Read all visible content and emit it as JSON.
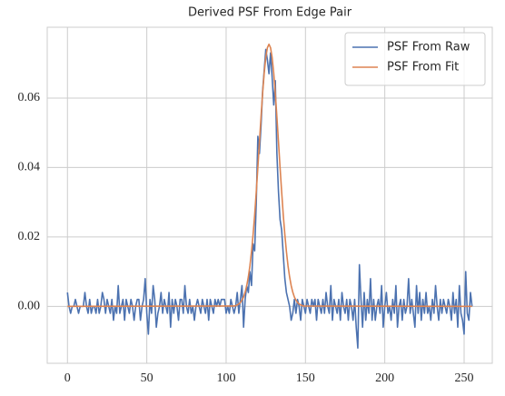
{
  "chart_data": {
    "type": "line",
    "title": "Derived PSF From Edge Pair",
    "xlim": [
      -12.75,
      267.75
    ],
    "xticks": [
      0,
      50,
      100,
      150,
      200,
      250
    ],
    "ylim": [
      -0.0164,
      0.0804
    ],
    "yticks": [
      {
        "value": 0,
        "label": "0.00"
      },
      {
        "value": 0.02,
        "label": "0.02"
      },
      {
        "value": 0.04,
        "label": "0.04"
      },
      {
        "value": 0.06,
        "label": "0.06"
      }
    ],
    "grid": true,
    "legend": "upper right",
    "series": [
      {
        "name": "PSF From Raw",
        "color": "#4c72b0",
        "x": [
          0,
          1,
          2,
          3,
          4,
          5,
          6,
          7,
          8,
          9,
          10,
          11,
          12,
          13,
          14,
          15,
          16,
          17,
          18,
          19,
          20,
          21,
          22,
          23,
          24,
          25,
          26,
          27,
          28,
          29,
          30,
          31,
          32,
          33,
          34,
          35,
          36,
          37,
          38,
          39,
          40,
          41,
          42,
          43,
          44,
          45,
          46,
          47,
          48,
          49,
          50,
          51,
          52,
          53,
          54,
          55,
          56,
          57,
          58,
          59,
          60,
          61,
          62,
          63,
          64,
          65,
          66,
          67,
          68,
          69,
          70,
          71,
          72,
          73,
          74,
          75,
          76,
          77,
          78,
          79,
          80,
          81,
          82,
          83,
          84,
          85,
          86,
          87,
          88,
          89,
          90,
          91,
          92,
          93,
          94,
          95,
          96,
          97,
          98,
          99,
          100,
          101,
          102,
          103,
          104,
          105,
          106,
          107,
          108,
          109,
          110,
          111,
          112,
          113,
          114,
          115,
          116,
          117,
          118,
          119,
          120,
          121,
          122,
          123,
          124,
          125,
          126,
          127,
          128,
          129,
          130,
          131,
          132,
          133,
          134,
          135,
          136,
          137,
          138,
          139,
          140,
          141,
          142,
          143,
          144,
          145,
          146,
          147,
          148,
          149,
          150,
          151,
          152,
          153,
          154,
          155,
          156,
          157,
          158,
          159,
          160,
          161,
          162,
          163,
          164,
          165,
          166,
          167,
          168,
          169,
          170,
          171,
          172,
          173,
          174,
          175,
          176,
          177,
          178,
          179,
          180,
          181,
          182,
          183,
          184,
          185,
          186,
          187,
          188,
          189,
          190,
          191,
          192,
          193,
          194,
          195,
          196,
          197,
          198,
          199,
          200,
          201,
          202,
          203,
          204,
          205,
          206,
          207,
          208,
          209,
          210,
          211,
          212,
          213,
          214,
          215,
          216,
          217,
          218,
          219,
          220,
          221,
          222,
          223,
          224,
          225,
          226,
          227,
          228,
          229,
          230,
          231,
          232,
          233,
          234,
          235,
          236,
          237,
          238,
          239,
          240,
          241,
          242,
          243,
          244,
          245,
          246,
          247,
          248,
          249,
          250,
          251,
          252,
          253,
          254,
          255
        ],
        "values": [
          0.004,
          0,
          -0.002,
          0,
          0,
          0.002,
          0,
          -0.002,
          0,
          0,
          0,
          0.004,
          0,
          -0.002,
          0.002,
          -0.002,
          0,
          0,
          -0.002,
          0.002,
          -0.002,
          0,
          0.004,
          0.002,
          -0.002,
          0.002,
          0,
          -0.002,
          0.002,
          -0.004,
          0,
          -0.002,
          0.006,
          -0.002,
          0,
          0.002,
          -0.004,
          0.002,
          0,
          -0.002,
          0.002,
          0,
          -0.004,
          0,
          0.002,
          0.002,
          -0.004,
          0,
          0.002,
          0.008,
          -0.002,
          -0.008,
          0.002,
          -0.002,
          0.006,
          0.002,
          -0.006,
          -0.002,
          0,
          0.004,
          -0.002,
          0.002,
          0,
          -0.002,
          0.004,
          -0.006,
          0.002,
          -0.002,
          0.002,
          0,
          -0.004,
          0.002,
          0.002,
          -0.002,
          0.006,
          0,
          -0.002,
          0.002,
          -0.002,
          0,
          -0.004,
          0,
          0.002,
          0,
          -0.002,
          0.002,
          0,
          -0.002,
          0.002,
          -0.004,
          0.002,
          0,
          -0.002,
          0.002,
          0,
          0.002,
          0,
          0.002,
          0.002,
          0.002,
          -0.002,
          0,
          -0.002,
          0.002,
          0,
          -0.002,
          0,
          0.004,
          -0.002,
          0.002,
          0.006,
          -0.006,
          0.002,
          0.006,
          0.004,
          0.01,
          0.006,
          0.018,
          0.016,
          0.03,
          0.049,
          0.044,
          0.052,
          0.062,
          0.068,
          0.074,
          0.071,
          0.067,
          0.073,
          0.066,
          0.058,
          0.065,
          0.044,
          0.033,
          0.025,
          0.022,
          0.015,
          0.008,
          0.004,
          0.002,
          0,
          -0.004,
          -0.002,
          0.002,
          -0.002,
          0.002,
          0,
          -0.004,
          0.002,
          0,
          -0.002,
          0.002,
          0,
          -0.002,
          0.002,
          0,
          0.002,
          -0.004,
          0.002,
          0,
          -0.002,
          0.002,
          -0.002,
          0.004,
          0,
          -0.002,
          0.006,
          -0.004,
          0.002,
          0,
          -0.002,
          0.002,
          -0.004,
          0.004,
          0,
          -0.002,
          0.002,
          -0.004,
          0.002,
          0,
          -0.004,
          0.002,
          -0.006,
          -0.012,
          0.012,
          0.002,
          -0.006,
          0.004,
          -0.004,
          0.002,
          -0.002,
          0.008,
          -0.004,
          0.002,
          -0.004,
          0,
          0.002,
          -0.002,
          0.006,
          -0.006,
          0,
          0.004,
          -0.002,
          0,
          -0.004,
          0.002,
          -0.002,
          0.006,
          -0.006,
          0,
          0.002,
          -0.004,
          0.002,
          -0.002,
          0,
          0.008,
          -0.002,
          0.002,
          -0.002,
          -0.006,
          0.006,
          -0.002,
          0.004,
          -0.004,
          0.002,
          -0.002,
          0.004,
          -0.002,
          0,
          -0.004,
          0.002,
          -0.002,
          0.006,
          0,
          -0.004,
          0.002,
          -0.002,
          0.002,
          0,
          -0.002,
          0.002,
          0,
          -0.004,
          0.004,
          -0.002,
          0.002,
          -0.006,
          0.006,
          -0.002,
          -0.004,
          -0.008,
          0.01,
          -0.002,
          -0.004,
          0.004,
          0
        ]
      },
      {
        "name": "PSF From Fit",
        "color": "#dd8452",
        "x": [
          0,
          105,
          106,
          107,
          108,
          109,
          110,
          111,
          112,
          113,
          114,
          115,
          116,
          117,
          118,
          119,
          120,
          121,
          122,
          123,
          124,
          125,
          126,
          127,
          128,
          129,
          130,
          131,
          132,
          133,
          134,
          135,
          136,
          137,
          138,
          139,
          140,
          141,
          142,
          143,
          144,
          145,
          146,
          147,
          148,
          149,
          255
        ],
        "values": [
          0,
          0.0001,
          0.0002,
          0.0004,
          0.0007,
          0.0011,
          0.0018,
          0.0027,
          0.0041,
          0.006,
          0.0085,
          0.0117,
          0.0158,
          0.0207,
          0.0264,
          0.033,
          0.04,
          0.0474,
          0.0546,
          0.0614,
          0.0672,
          0.0717,
          0.0745,
          0.0755,
          0.0745,
          0.0717,
          0.0672,
          0.0614,
          0.0546,
          0.0474,
          0.04,
          0.033,
          0.0264,
          0.0207,
          0.0158,
          0.0117,
          0.0085,
          0.006,
          0.0041,
          0.0027,
          0.0018,
          0.0011,
          0.0007,
          0.0004,
          0.0002,
          0.0001,
          0
        ]
      }
    ]
  }
}
